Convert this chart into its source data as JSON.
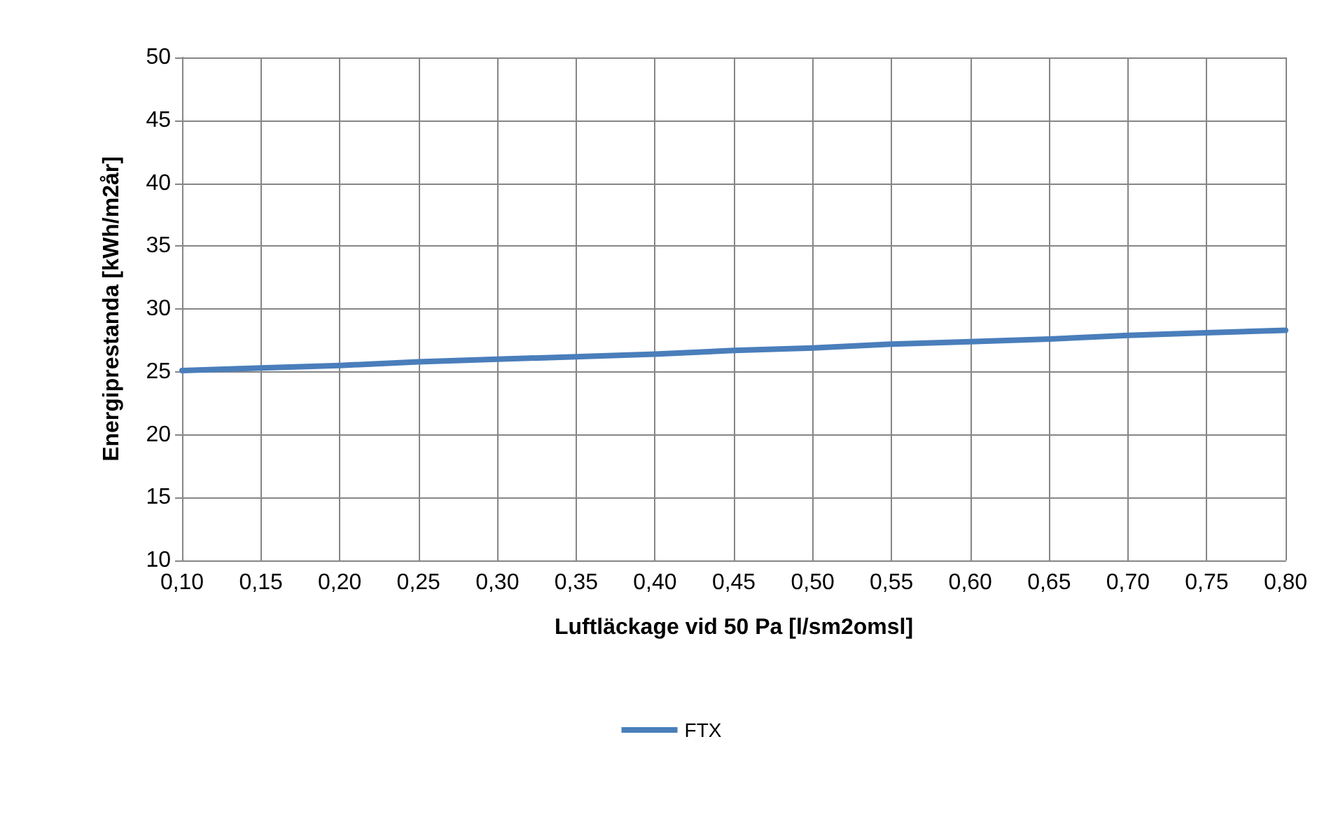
{
  "chart_data": {
    "type": "line",
    "xlabel": "Luftläckage vid 50 Pa [l/sm2omsl]",
    "ylabel": "Energiprestanda [kWh/m2år]",
    "categories": [
      "0,10",
      "0,15",
      "0,20",
      "0,25",
      "0,30",
      "0,35",
      "0,40",
      "0,45",
      "0,50",
      "0,55",
      "0,60",
      "0,65",
      "0,70",
      "0,75",
      "0,80"
    ],
    "series": [
      {
        "name": "FTX",
        "color": "#4a7ebb",
        "values": [
          25.1,
          25.3,
          25.5,
          25.8,
          26.0,
          26.2,
          26.4,
          26.7,
          26.9,
          27.2,
          27.4,
          27.6,
          27.9,
          28.1,
          28.3
        ]
      }
    ],
    "ylim": [
      10,
      50
    ],
    "yticks": [
      10,
      15,
      20,
      25,
      30,
      35,
      40,
      45,
      50
    ],
    "grid": true,
    "legend": "bottom",
    "marker": "none",
    "line_style": "solid"
  }
}
